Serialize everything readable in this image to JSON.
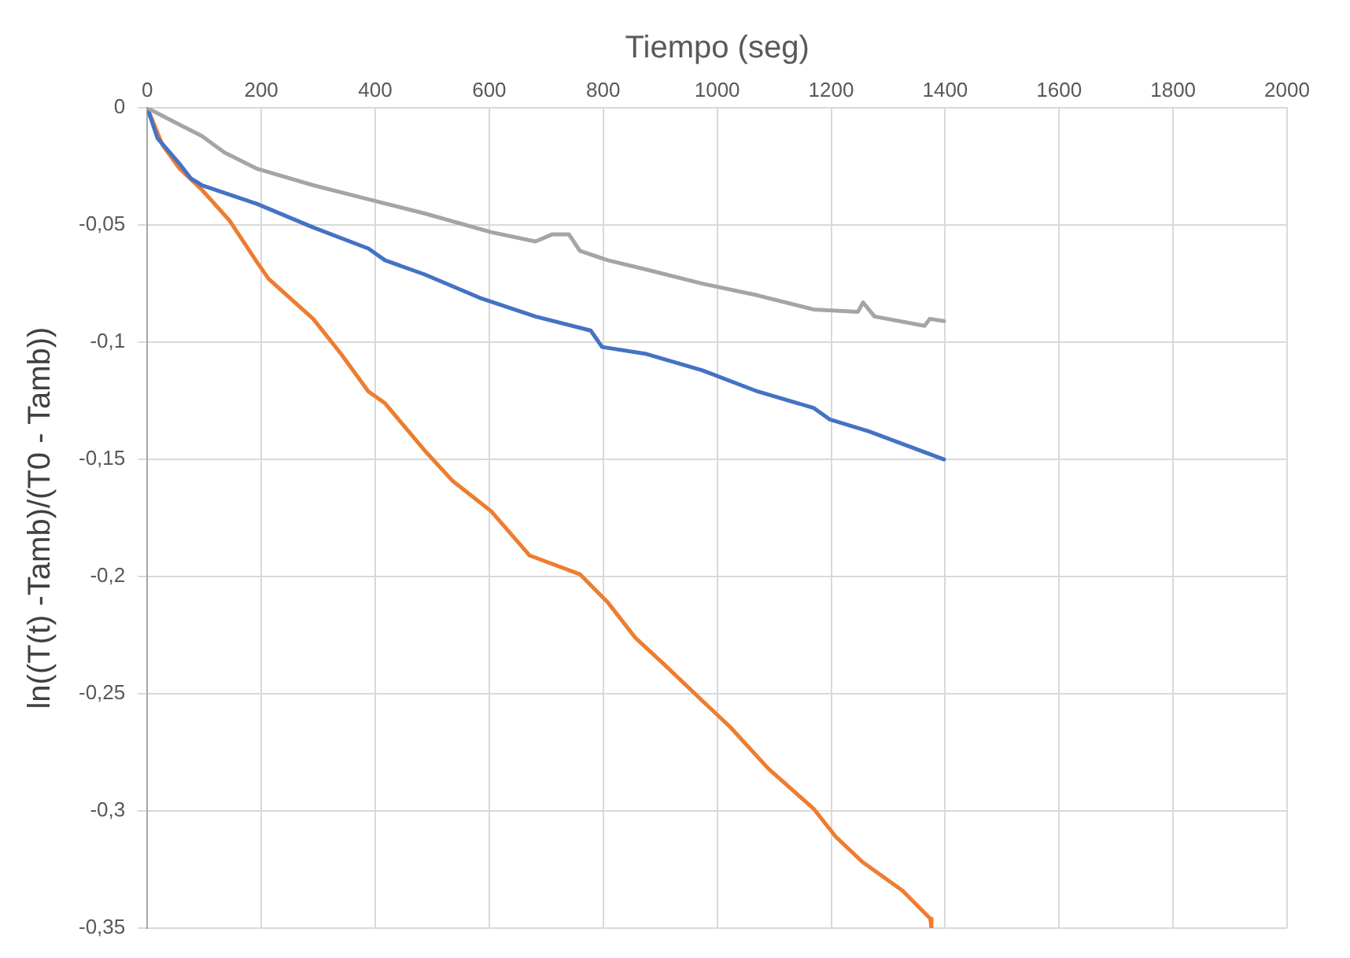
{
  "chart_data": {
    "type": "line",
    "xlabel": "Tiempo (seg)",
    "ylabel": "ln((T(t) -Tamb)/(T0 - Tamb))",
    "xlim": [
      0,
      2000
    ],
    "xticks": [
      0,
      200,
      400,
      600,
      800,
      1000,
      1200,
      1400,
      1600,
      1800,
      2000
    ],
    "ylim": [
      -0.35,
      0
    ],
    "yticks": [
      {
        "value": 0,
        "label": "0"
      },
      {
        "value": -0.05,
        "label": "-0,05"
      },
      {
        "value": -0.1,
        "label": "-0,1"
      },
      {
        "value": -0.15,
        "label": "-0,15"
      },
      {
        "value": -0.2,
        "label": "-0,2"
      },
      {
        "value": -0.25,
        "label": "-0,25"
      },
      {
        "value": -0.3,
        "label": "-0,3"
      },
      {
        "value": -0.35,
        "label": "-0,35"
      }
    ],
    "grid": true,
    "legend": false,
    "marker": "none",
    "line_style": "solid",
    "series": [
      {
        "color": "#a5a5a5",
        "x": [
          0,
          47,
          96,
          135,
          193,
          291,
          388,
          486,
          603,
          681,
          710,
          740,
          759,
          808,
          876,
          974,
          1071,
          1169,
          1247,
          1256,
          1276,
          1364,
          1373,
          1398
        ],
        "values": [
          0,
          -0.006,
          -0.012,
          -0.019,
          -0.026,
          -0.033,
          -0.039,
          -0.045,
          -0.053,
          -0.057,
          -0.054,
          -0.054,
          -0.061,
          -0.065,
          -0.069,
          -0.075,
          -0.08,
          -0.086,
          -0.087,
          -0.083,
          -0.089,
          -0.093,
          -0.09,
          -0.091
        ]
      },
      {
        "color": "#4472c4",
        "x": [
          0,
          18,
          57,
          76,
          96,
          193,
          291,
          388,
          417,
          486,
          583,
          681,
          778,
          798,
          876,
          974,
          1071,
          1169,
          1198,
          1266,
          1398
        ],
        "values": [
          0,
          -0.013,
          -0.024,
          -0.03,
          -0.033,
          -0.041,
          -0.051,
          -0.06,
          -0.065,
          -0.071,
          -0.081,
          -0.089,
          -0.095,
          -0.102,
          -0.105,
          -0.112,
          -0.121,
          -0.128,
          -0.133,
          -0.138,
          -0.15
        ]
      },
      {
        "color": "#ed7d31",
        "x": [
          0,
          27,
          57,
          96,
          144,
          193,
          213,
          291,
          340,
          388,
          417,
          486,
          535,
          603,
          671,
          759,
          808,
          856,
          905,
          974,
          1022,
          1090,
          1169,
          1208,
          1256,
          1325,
          1374,
          1376
        ],
        "values": [
          0,
          -0.016,
          -0.026,
          -0.035,
          -0.048,
          -0.066,
          -0.073,
          -0.09,
          -0.105,
          -0.121,
          -0.126,
          -0.146,
          -0.159,
          -0.172,
          -0.191,
          -0.199,
          -0.211,
          -0.226,
          -0.237,
          -0.253,
          -0.264,
          -0.282,
          -0.299,
          -0.311,
          -0.322,
          -0.334,
          -0.346,
          -0.35
        ]
      }
    ]
  }
}
